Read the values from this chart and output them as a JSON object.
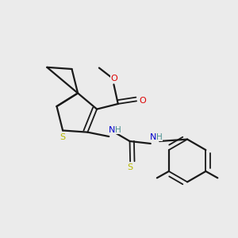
{
  "bg_color": "#ebebeb",
  "bond_color": "#1a1a1a",
  "S_color": "#b8b800",
  "O_color": "#dd0000",
  "N_color": "#0000cc",
  "NH_color": "#4a9090",
  "figsize": [
    3.0,
    3.0
  ],
  "dpi": 100,
  "xlim": [
    0,
    10
  ],
  "ylim": [
    0,
    10
  ]
}
